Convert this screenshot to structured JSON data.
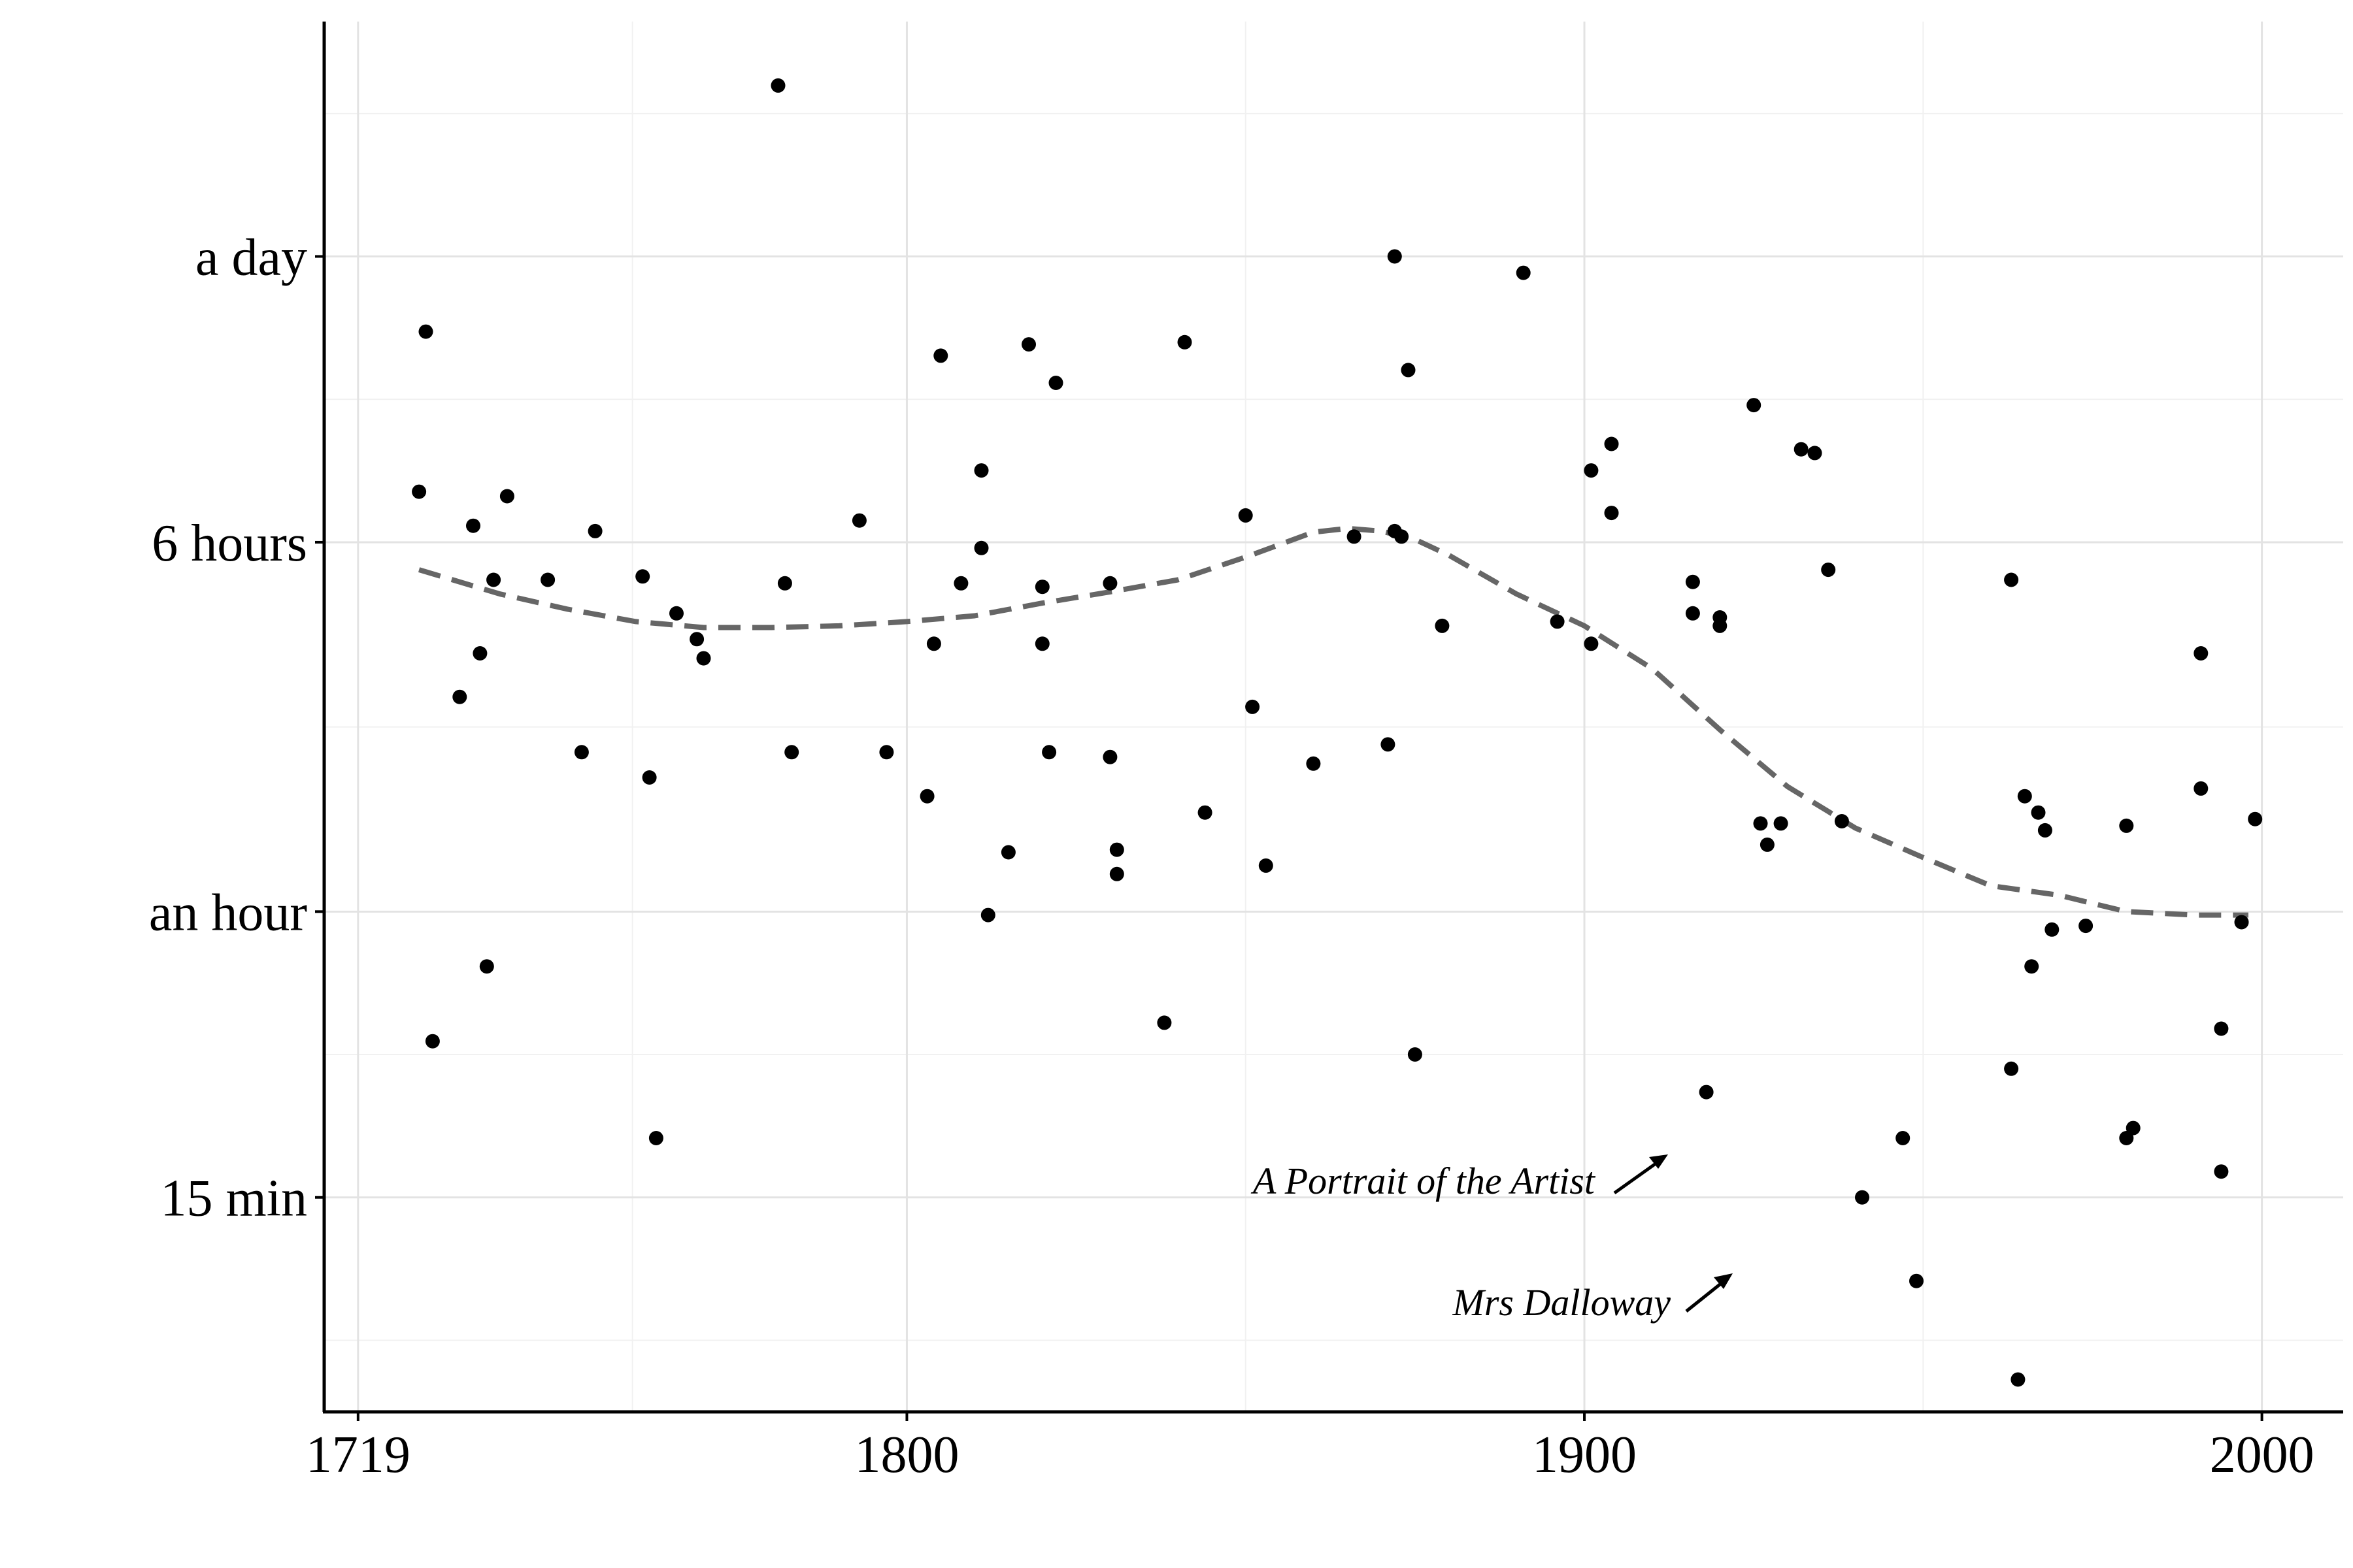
{
  "chart_data": {
    "type": "scatter",
    "title": "",
    "xlabel": "",
    "ylabel": "",
    "x_scale": "linear",
    "y_scale": "log",
    "y_unit": "minutes",
    "xlim": [
      1714,
      2012
    ],
    "ylim": [
      5.3,
      4500
    ],
    "x_ticks": [
      {
        "value": 1719,
        "label": "1719"
      },
      {
        "value": 1800,
        "label": "1800"
      },
      {
        "value": 1900,
        "label": "1900"
      },
      {
        "value": 2000,
        "label": "2000"
      }
    ],
    "y_ticks": [
      {
        "value": 15,
        "label": "15 min"
      },
      {
        "value": 60,
        "label": "an hour"
      },
      {
        "value": 360,
        "label": "6 hours"
      },
      {
        "value": 1440,
        "label": "a day"
      }
    ],
    "grid": true,
    "legend": "none",
    "point_color": "#000000",
    "trend_color": "#666666",
    "series": [
      {
        "type": "scatter",
        "x": [
          1728,
          1729,
          1730,
          1734,
          1736,
          1737,
          1738,
          1739,
          1741,
          1747,
          1752,
          1754,
          1761,
          1762,
          1763,
          1766,
          1769,
          1770,
          1781,
          1782,
          1783,
          1793,
          1797,
          1803,
          1804,
          1805,
          1808,
          1811,
          1811,
          1812,
          1815,
          1818,
          1820,
          1820,
          1821,
          1822,
          1830,
          1830,
          1831,
          1831,
          1838,
          1841,
          1844,
          1850,
          1851,
          1853,
          1860,
          1866,
          1871,
          1872,
          1872,
          1873,
          1874,
          1875,
          1879,
          1891,
          1896,
          1901,
          1901,
          1904,
          1904,
          1916,
          1916,
          1918,
          1920,
          1920,
          1925,
          1926,
          1927,
          1929,
          1932,
          1934,
          1936,
          1938,
          1941,
          1947,
          1949,
          1963,
          1963,
          1964,
          1965,
          1966,
          1967,
          1968,
          1969,
          1974,
          1980,
          1980,
          1981,
          1991,
          1991,
          1994,
          1994,
          1997,
          1999
        ],
        "y": [
          460,
          1000,
          32,
          170,
          390,
          210,
          46,
          300,
          450,
          300,
          130,
          380,
          305,
          115,
          20,
          255,
          225,
          205,
          3300,
          295,
          130,
          400,
          130,
          105,
          220,
          890,
          295,
          510,
          350,
          59,
          80,
          940,
          290,
          220,
          130,
          780,
          295,
          127,
          81,
          72,
          35,
          950,
          97,
          410,
          162,
          75,
          123,
          370,
          135,
          1440,
          380,
          370,
          830,
          30,
          240,
          1330,
          245,
          220,
          510,
          415,
          580,
          297,
          255,
          25,
          250,
          240,
          700,
          92,
          83,
          92,
          565,
          555,
          315,
          93,
          15,
          20,
          10,
          28,
          300,
          6.2,
          105,
          46,
          97,
          89,
          55,
          56,
          20,
          91,
          21,
          210,
          109,
          34,
          17,
          57,
          94
        ],
        "labels": [
          "",
          "",
          "",
          "",
          "",
          "",
          "",
          "",
          "",
          "",
          "",
          "",
          "",
          "",
          "",
          "",
          "",
          "",
          "",
          "",
          "",
          "",
          "",
          "",
          "",
          "",
          "",
          "",
          "",
          "",
          "",
          "",
          "",
          "",
          "",
          "",
          "",
          "",
          "",
          "",
          "",
          "",
          "",
          "",
          "",
          "",
          "",
          "",
          "",
          "",
          "",
          "",
          "",
          "",
          "",
          "",
          "",
          "",
          "",
          "",
          "",
          "",
          "",
          "",
          "",
          "",
          "",
          "",
          "",
          "",
          "",
          "",
          "",
          "",
          "",
          "",
          "",
          "",
          "",
          "",
          "",
          "",
          "",
          "",
          "",
          "",
          "",
          "",
          "",
          "",
          "",
          "",
          "",
          "",
          "",
          "",
          ""
        ]
      },
      {
        "type": "line",
        "style": "dashed",
        "x": [
          1728,
          1740,
          1750,
          1760,
          1770,
          1780,
          1790,
          1800,
          1810,
          1820,
          1830,
          1840,
          1850,
          1860,
          1865,
          1870,
          1875,
          1880,
          1890,
          1900,
          1910,
          1920,
          1930,
          1940,
          1950,
          1960,
          1970,
          1980,
          1990,
          1998
        ],
        "y": [
          315,
          280,
          260,
          245,
          238,
          238,
          240,
          245,
          252,
          268,
          283,
          300,
          335,
          378,
          385,
          380,
          365,
          338,
          280,
          240,
          195,
          145,
          110,
          90,
          78,
          68,
          65,
          60,
          59,
          59
        ]
      }
    ],
    "annotations": [
      {
        "text": "A Portrait of  the Artist",
        "x": 1916,
        "y": 25
      },
      {
        "text": "Mrs Dalloway",
        "x": 1925,
        "y": 15
      }
    ]
  }
}
